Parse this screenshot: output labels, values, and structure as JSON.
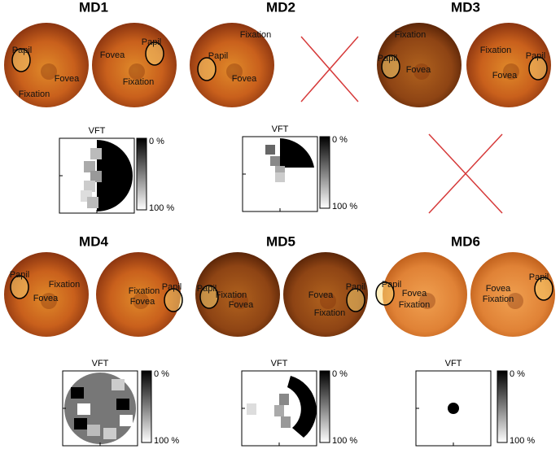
{
  "panels": [
    {
      "title": "MD1",
      "eyes": [
        [
          "Papil",
          "Fovea",
          "Fixation"
        ],
        [
          "Fovea",
          "Papil",
          "Fixation"
        ]
      ],
      "vft": {
        "title": "VFT",
        "scale_top": "0 %",
        "scale_bottom": "100 %"
      }
    },
    {
      "title": "MD2",
      "eyes": [
        [
          "Fixation",
          "Papil",
          "Fovea"
        ]
      ],
      "vft": {
        "title": "VFT",
        "scale_top": "0 %",
        "scale_bottom": "100 %"
      }
    },
    {
      "title": "MD3",
      "eyes": [
        [
          "Fixation",
          "Papil",
          "Fovea"
        ],
        [
          "Fixation",
          "Fovea",
          "Papil"
        ]
      ]
    },
    {
      "title": "MD4",
      "eyes": [
        [
          "Papil",
          "Fixation",
          "Fovea"
        ],
        [
          "Fixation",
          "Papil",
          "Fovea"
        ]
      ],
      "vft": {
        "title": "VFT",
        "scale_top": "0 %",
        "scale_bottom": "100 %"
      }
    },
    {
      "title": "MD5",
      "eyes": [
        [
          "Papil",
          "Fixation",
          "Fovea"
        ],
        [
          "Fovea",
          "Papil",
          "Fixation"
        ]
      ],
      "vft": {
        "title": "VFT",
        "scale_top": "0 %",
        "scale_bottom": "100 %"
      }
    },
    {
      "title": "MD6",
      "eyes": [
        [
          "Papil",
          "Fovea",
          "Fixation"
        ],
        [
          "Fovea",
          "Papil",
          "Fixation"
        ]
      ],
      "vft": {
        "title": "VFT",
        "scale_top": "0 %",
        "scale_bottom": "100 %"
      }
    }
  ]
}
